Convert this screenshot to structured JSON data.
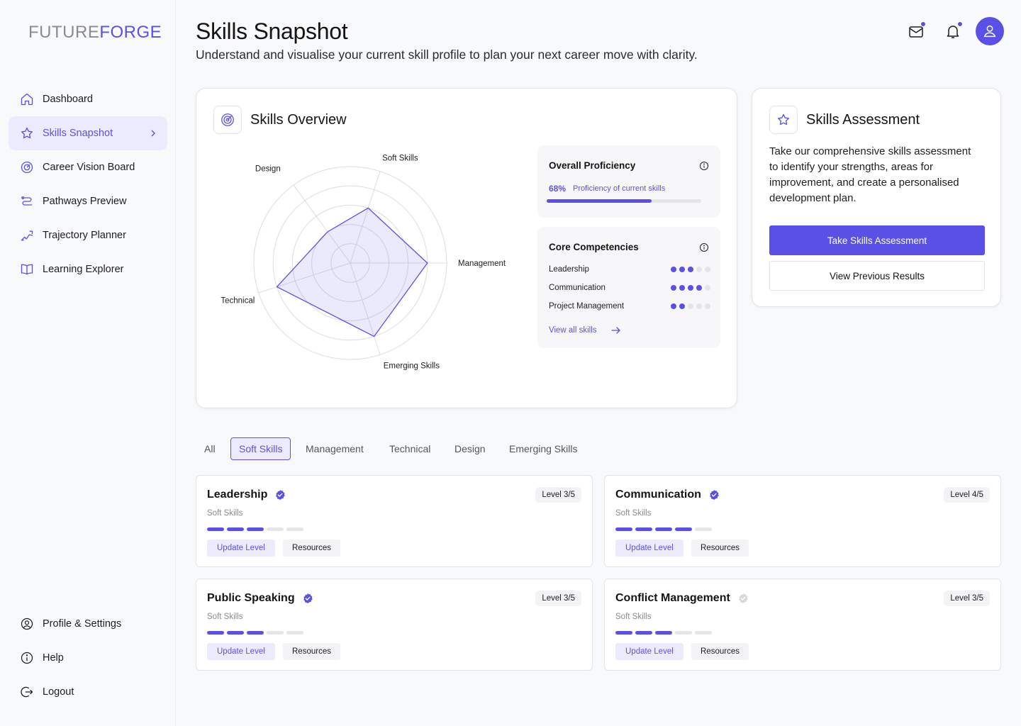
{
  "app": {
    "logo_part1": "FUTURE",
    "logo_part2": "FORGE"
  },
  "sidebar": {
    "items": [
      {
        "label": "Dashboard",
        "icon": "home-icon"
      },
      {
        "label": "Skills Snapshot",
        "icon": "star-icon",
        "active": true
      },
      {
        "label": "Career Vision Board",
        "icon": "target-icon"
      },
      {
        "label": "Pathways Preview",
        "icon": "route-icon"
      },
      {
        "label": "Trajectory Planner",
        "icon": "trajectory-icon"
      },
      {
        "label": "Learning Explorer",
        "icon": "book-icon"
      }
    ],
    "bottom": [
      {
        "label": "Profile & Settings",
        "icon": "user-circle-icon"
      },
      {
        "label": "Help",
        "icon": "info-icon"
      },
      {
        "label": "Logout",
        "icon": "logout-icon"
      }
    ]
  },
  "header": {
    "title": "Skills Snapshot",
    "subtitle": "Understand and visualise your current skill profile to plan your next career move with clarity."
  },
  "overview": {
    "title": "Skills Overview",
    "radar": {
      "axes": [
        "Soft Skills",
        "Management",
        "Emerging Skills",
        "Technical",
        "Design"
      ],
      "values": [
        3,
        4,
        4,
        4,
        2
      ],
      "max": 5
    },
    "proficiency": {
      "title": "Overall Proficiency",
      "percent_label": "68%",
      "percent_value": 68,
      "caption": "Proficiency of current skills"
    },
    "competencies": {
      "title": "Core Competencies",
      "items": [
        {
          "name": "Leadership",
          "level": 3,
          "max": 5
        },
        {
          "name": "Communication",
          "level": 4,
          "max": 5
        },
        {
          "name": "Project Management",
          "level": 2,
          "max": 5
        }
      ],
      "view_all": "View all skills"
    }
  },
  "assessment": {
    "title": "Skills Assessment",
    "text": "Take our comprehensive skills assessment to identify your strengths, areas for improvement, and create a personalised development plan.",
    "primary_button": "Take Skills Assessment",
    "secondary_button": "View Previous Results"
  },
  "filters": {
    "tabs": [
      "All",
      "Soft Skills",
      "Management",
      "Technical",
      "Design",
      "Emerging Skills"
    ],
    "active": "Soft Skills"
  },
  "skills": [
    {
      "name": "Leadership",
      "category": "Soft Skills",
      "level_label": "Level 3/5",
      "level": 3,
      "verified": true
    },
    {
      "name": "Communication",
      "category": "Soft Skills",
      "level_label": "Level 4/5",
      "level": 4,
      "verified": true
    },
    {
      "name": "Public Speaking",
      "category": "Soft Skills",
      "level_label": "Level 3/5",
      "level": 3,
      "verified": true
    },
    {
      "name": "Conflict Management",
      "category": "Soft Skills",
      "level_label": "Level 3/5",
      "level": 3,
      "verified": false
    }
  ],
  "skill_actions": {
    "update": "Update Level",
    "resources": "Resources"
  },
  "colors": {
    "accent": "#5b50e6",
    "accent_light": "#ecebfd",
    "muted": "#e6e6ea"
  }
}
